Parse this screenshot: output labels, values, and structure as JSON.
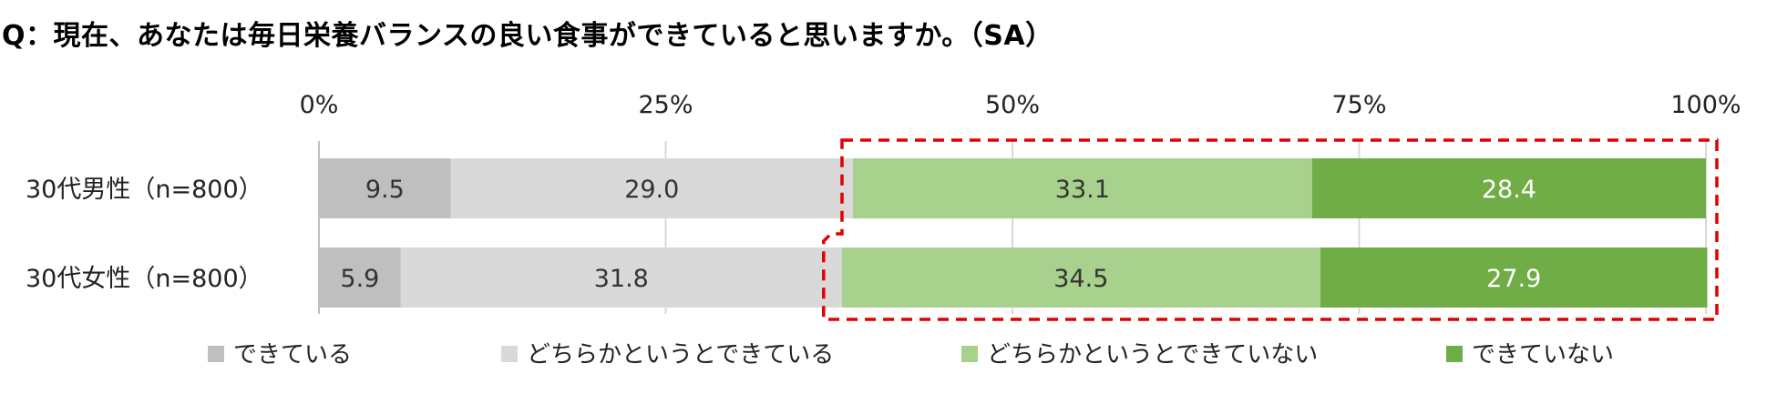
{
  "title": "Q：現在、あなたは毎日栄養バランスの良い食事ができていると思いますか。（SA）",
  "chart_data": {
    "type": "bar",
    "orientation": "horizontal",
    "stacked": true,
    "percent_stacked": true,
    "categories": [
      "30代男性（n=800）",
      "30代女性（n=800）"
    ],
    "series": [
      {
        "name": "できている",
        "values": [
          9.5,
          5.9
        ],
        "color": "#bfbfbf"
      },
      {
        "name": "どちらかというとできている",
        "values": [
          29.0,
          31.8
        ],
        "color": "#d9d9d9"
      },
      {
        "name": "どちらかというとできていない",
        "values": [
          33.1,
          34.5
        ],
        "color": "#a9d18e"
      },
      {
        "name": "できていない",
        "values": [
          28.4,
          27.9
        ],
        "color": "#70ad47"
      }
    ],
    "xlim": [
      0,
      100
    ],
    "ticks": [
      0,
      25,
      50,
      75,
      100
    ],
    "tick_labels": [
      "0%",
      "25%",
      "50%",
      "75%",
      "100%"
    ],
    "grid": true,
    "legend_position": "bottom",
    "data_label_colors": [
      "#333333",
      "#333333",
      "#333333",
      "#ffffff"
    ],
    "highlight_color": "#e00000",
    "highlight_series": [
      "どちらかというとできていない",
      "できていない"
    ]
  }
}
